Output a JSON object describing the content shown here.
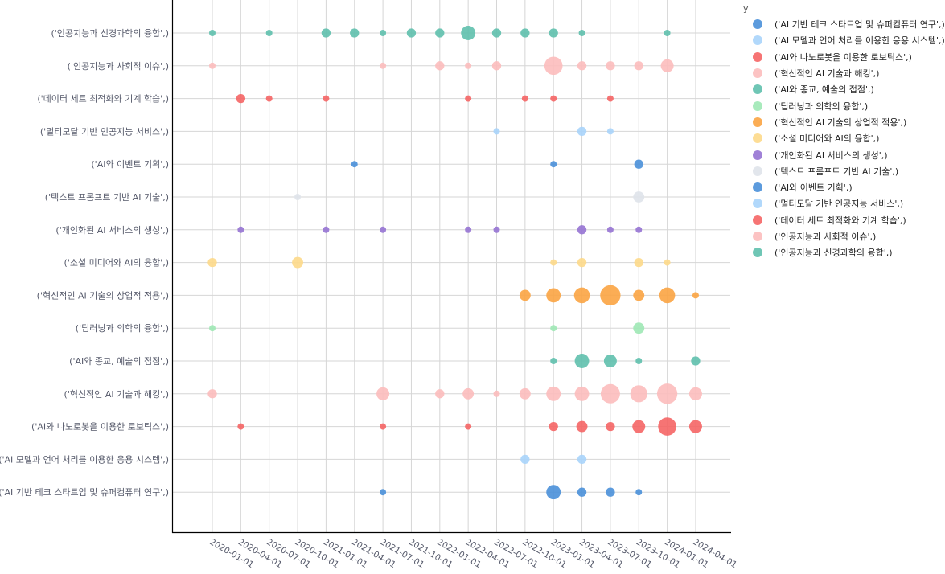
{
  "chart_data": {
    "type": "scatter",
    "subtype": "bubble",
    "title": "",
    "xlabel": "",
    "ylabel": "",
    "legend_title": "y",
    "legend_position": "right",
    "grid": true,
    "x_ticks": [
      "2020-01-01",
      "2020-04-01",
      "2020-07-01",
      "2020-10-01",
      "2021-01-01",
      "2021-04-01",
      "2021-07-01",
      "2021-10-01",
      "2022-01-01",
      "2022-04-01",
      "2022-07-01",
      "2022-10-01",
      "2023-01-01",
      "2023-04-01",
      "2023-07-01",
      "2023-10-01",
      "2024-01-01",
      "2024-04-01"
    ],
    "y_categories": [
      "('AI 기반 테크 스타트업 및 슈퍼컴퓨터 연구',)",
      "('AI 모델과 언어 처리를 이용한 응용 시스템',)",
      "('AI와 나노로봇을 이용한 로보틱스',)",
      "('혁신적인 AI 기술과 해킹',)",
      "('AI와 종교, 예술의 접점',)",
      "('딥러닝과 의학의 융합',)",
      "('혁신적인 AI 기술의 상업적 적용',)",
      "('소셜 미디어와 AI의 융합',)",
      "('개인화된 AI 서비스의 생성',)",
      "('텍스트 프롬프트 기반 AI 기술',)",
      "('AI와 이벤트 기획',)",
      "('멀티모달 기반 인공지능 서비스',)",
      "('데이터 세트 최적화와 기계 학습',)",
      "('인공지능과 사회적 이슈',)",
      "('인공지능과 신경과학의 융합',)"
    ],
    "series": [
      {
        "name": "('AI 기반 테크 스타트업 및 슈퍼컴퓨터 연구',)",
        "color": "#4a90d9",
        "points": [
          [
            "2021-07-01",
            1
          ],
          [
            "2023-01-01",
            5
          ],
          [
            "2023-04-01",
            2
          ],
          [
            "2023-07-01",
            2
          ],
          [
            "2023-10-01",
            1
          ]
        ]
      },
      {
        "name": "('AI 모델과 언어 처리를 이용한 응용 시스템',)",
        "color": "#a8d4fb",
        "points": [
          [
            "2022-10-01",
            2
          ],
          [
            "2023-04-01",
            2
          ]
        ]
      },
      {
        "name": "('AI와 나노로봇을 이용한 로보틱스',)",
        "color": "#f56565",
        "points": [
          [
            "2020-04-01",
            1
          ],
          [
            "2021-07-01",
            1
          ],
          [
            "2022-04-01",
            1
          ],
          [
            "2023-01-01",
            2
          ],
          [
            "2023-04-01",
            3
          ],
          [
            "2023-07-01",
            2
          ],
          [
            "2023-10-01",
            4
          ],
          [
            "2024-01-01",
            8
          ],
          [
            "2024-04-01",
            4
          ]
        ]
      },
      {
        "name": "('혁신적인 AI 기술과 해킹',)",
        "color": "#fcbcbd",
        "points": [
          [
            "2020-01-01",
            2
          ],
          [
            "2021-07-01",
            4
          ],
          [
            "2022-01-01",
            2
          ],
          [
            "2022-04-01",
            3
          ],
          [
            "2022-07-01",
            1
          ],
          [
            "2022-10-01",
            3
          ],
          [
            "2023-01-01",
            5
          ],
          [
            "2023-04-01",
            5
          ],
          [
            "2023-07-01",
            9
          ],
          [
            "2023-10-01",
            7
          ],
          [
            "2024-01-01",
            10
          ],
          [
            "2024-04-01",
            4
          ]
        ]
      },
      {
        "name": "('AI와 종교, 예술의 접점',)",
        "color": "#5fc0ad",
        "points": [
          [
            "2023-01-01",
            1
          ],
          [
            "2023-04-01",
            5
          ],
          [
            "2023-07-01",
            4
          ],
          [
            "2023-10-01",
            1
          ],
          [
            "2024-04-01",
            2
          ]
        ]
      },
      {
        "name": "('딥러닝과 의학의 융합',)",
        "color": "#9ee8b5",
        "points": [
          [
            "2020-01-01",
            1
          ],
          [
            "2023-01-01",
            1
          ],
          [
            "2023-10-01",
            3
          ]
        ]
      },
      {
        "name": "('혁신적인 AI 기술의 상업적 적용',)",
        "color": "#fba442",
        "points": [
          [
            "2022-10-01",
            3
          ],
          [
            "2023-01-01",
            5
          ],
          [
            "2023-04-01",
            6
          ],
          [
            "2023-07-01",
            10
          ],
          [
            "2023-10-01",
            3
          ],
          [
            "2024-01-01",
            6
          ],
          [
            "2024-04-01",
            1
          ]
        ]
      },
      {
        "name": "('소셜 미디어와 AI의 융합',)",
        "color": "#fdd98a",
        "points": [
          [
            "2020-01-01",
            2
          ],
          [
            "2020-10-01",
            3
          ],
          [
            "2023-01-01",
            1
          ],
          [
            "2023-04-01",
            2
          ],
          [
            "2023-10-01",
            2
          ],
          [
            "2024-01-01",
            1
          ]
        ]
      },
      {
        "name": "('개인화된 AI 서비스의 생성',)",
        "color": "#9673d3",
        "points": [
          [
            "2020-04-01",
            1
          ],
          [
            "2021-01-01",
            1
          ],
          [
            "2021-07-01",
            1
          ],
          [
            "2022-04-01",
            1
          ],
          [
            "2022-07-01",
            1
          ],
          [
            "2023-04-01",
            2
          ],
          [
            "2023-07-01",
            1
          ],
          [
            "2023-10-01",
            1
          ]
        ]
      },
      {
        "name": "('텍스트 프롬프트 기반 AI 기술',)",
        "color": "#dfe3ea",
        "points": [
          [
            "2020-10-01",
            1
          ],
          [
            "2023-10-01",
            3
          ]
        ]
      },
      {
        "name": "('AI와 이벤트 기획',)",
        "color": "#4a90d9",
        "points": [
          [
            "2021-04-01",
            1
          ],
          [
            "2023-01-01",
            1
          ],
          [
            "2023-10-01",
            2
          ]
        ]
      },
      {
        "name": "('멀티모달 기반 인공지능 서비스',)",
        "color": "#a8d4fb",
        "points": [
          [
            "2022-07-01",
            1
          ],
          [
            "2023-04-01",
            2
          ],
          [
            "2023-07-01",
            1
          ]
        ]
      },
      {
        "name": "('데이터 세트 최적화와 기계 학습',)",
        "color": "#f56565",
        "points": [
          [
            "2020-04-01",
            2
          ],
          [
            "2020-07-01",
            1
          ],
          [
            "2021-01-01",
            1
          ],
          [
            "2022-04-01",
            1
          ],
          [
            "2022-10-01",
            1
          ],
          [
            "2023-01-01",
            1
          ],
          [
            "2023-07-01",
            1
          ]
        ]
      },
      {
        "name": "('인공지능과 사회적 이슈',)",
        "color": "#fcbcbd",
        "points": [
          [
            "2020-01-01",
            1
          ],
          [
            "2021-07-01",
            1
          ],
          [
            "2022-01-01",
            2
          ],
          [
            "2022-04-01",
            1
          ],
          [
            "2022-07-01",
            2
          ],
          [
            "2023-01-01",
            8
          ],
          [
            "2023-04-01",
            2
          ],
          [
            "2023-07-01",
            2
          ],
          [
            "2023-10-01",
            2
          ],
          [
            "2024-01-01",
            4
          ]
        ]
      },
      {
        "name": "('인공지능과 신경과학의 융합',)",
        "color": "#5fc0ad",
        "points": [
          [
            "2020-01-01",
            1
          ],
          [
            "2020-07-01",
            1
          ],
          [
            "2021-01-01",
            2
          ],
          [
            "2021-04-01",
            2
          ],
          [
            "2021-07-01",
            1
          ],
          [
            "2021-10-01",
            2
          ],
          [
            "2022-01-01",
            2
          ],
          [
            "2022-04-01",
            5
          ],
          [
            "2022-07-01",
            2
          ],
          [
            "2022-10-01",
            2
          ],
          [
            "2023-01-01",
            2
          ],
          [
            "2023-04-01",
            1
          ],
          [
            "2024-01-01",
            1
          ]
        ]
      }
    ],
    "legend_order": [
      "('AI 기반 테크 스타트업 및 슈퍼컴퓨터 연구',)",
      "('AI 모델과 언어 처리를 이용한 응용 시스템',)",
      "('AI와 나노로봇을 이용한 로보틱스',)",
      "('혁신적인 AI 기술과 해킹',)",
      "('AI와 종교, 예술의 접점',)",
      "('딥러닝과 의학의 융합',)",
      "('혁신적인 AI 기술의 상업적 적용',)",
      "('소셜 미디어와 AI의 융합',)",
      "('개인화된 AI 서비스의 생성',)",
      "('텍스트 프롬프트 기반 AI 기술',)",
      "('AI와 이벤트 기획',)",
      "('멀티모달 기반 인공지능 서비스',)",
      "('데이터 세트 최적화와 기계 학습',)",
      "('인공지능과 사회적 이슈',)",
      "('인공지능과 신경과학의 융합',)"
    ]
  }
}
